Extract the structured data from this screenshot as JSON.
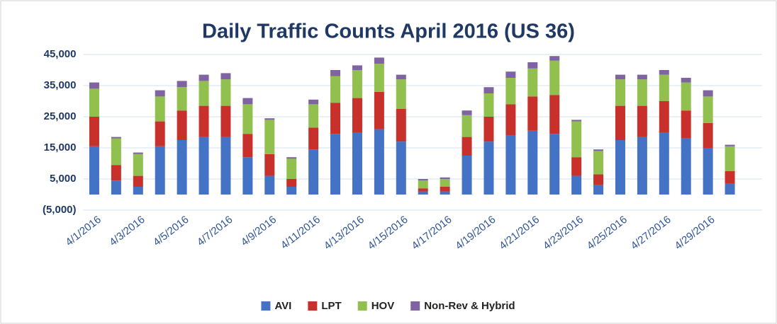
{
  "chart_data": {
    "type": "stacked-bar",
    "title": "Daily Traffic Counts April 2016 (US 36)",
    "categories": [
      "4/1/2016",
      null,
      "4/3/2016",
      null,
      "4/5/2016",
      null,
      "4/7/2016",
      null,
      "4/9/2016",
      null,
      "4/11/2016",
      null,
      "4/13/2016",
      null,
      "4/15/2016",
      null,
      "4/17/2016",
      null,
      "4/19/2016",
      null,
      "4/21/2016",
      null,
      "4/23/2016",
      null,
      "4/25/2016",
      null,
      "4/27/2016",
      null,
      "4/29/2016",
      null
    ],
    "series": [
      {
        "name": "AVI",
        "color": "#4472c4",
        "values": [
          15500,
          4500,
          2500,
          15500,
          17500,
          18500,
          18500,
          12000,
          6000,
          2500,
          14500,
          19500,
          20000,
          21000,
          17000,
          1000,
          1000,
          12500,
          17000,
          19000,
          20500,
          19500,
          6000,
          3000,
          17500,
          18500,
          20000,
          18000,
          15000,
          3500
        ]
      },
      {
        "name": "LPT",
        "color": "#c8302c",
        "values": [
          9500,
          5000,
          3500,
          8000,
          9500,
          10000,
          10000,
          7500,
          7000,
          2500,
          7000,
          10000,
          11000,
          12000,
          10500,
          1000,
          1500,
          6000,
          8000,
          10000,
          11000,
          12500,
          6000,
          3500,
          11000,
          10000,
          10000,
          9000,
          8000,
          4000
        ]
      },
      {
        "name": "HOV",
        "color": "#92c04f",
        "values": [
          9000,
          8500,
          7000,
          8000,
          7500,
          8000,
          8500,
          9500,
          11000,
          6500,
          7500,
          8500,
          9000,
          9000,
          9500,
          2500,
          2500,
          7000,
          7500,
          8500,
          9000,
          11000,
          11500,
          7500,
          8500,
          8500,
          8500,
          9000,
          8500,
          8000
        ]
      },
      {
        "name": "Non-Rev & Hybrid",
        "color": "#8064a2",
        "values": [
          2000,
          500,
          500,
          2000,
          2000,
          2000,
          2000,
          2000,
          500,
          500,
          1500,
          2000,
          1500,
          2000,
          1500,
          500,
          500,
          1500,
          2000,
          2000,
          2000,
          1500,
          500,
          500,
          1500,
          1500,
          1500,
          1500,
          2000,
          500
        ]
      }
    ],
    "ylim": [
      -5000,
      45000
    ],
    "yticks": [
      {
        "value": -5000,
        "label": "(5,000)"
      },
      {
        "value": 5000,
        "label": "5,000"
      },
      {
        "value": 15000,
        "label": "15,000"
      },
      {
        "value": 25000,
        "label": "25,000"
      },
      {
        "value": 35000,
        "label": "35,000"
      },
      {
        "value": 45000,
        "label": "45,000"
      }
    ],
    "grid": true,
    "legend": "bottom"
  }
}
